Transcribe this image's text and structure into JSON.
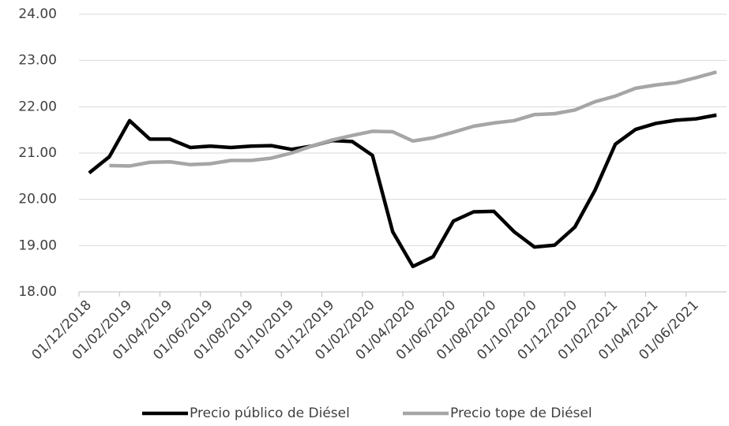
{
  "chart_data": {
    "type": "line",
    "categories": [
      "01/12/2018",
      null,
      "01/02/2019",
      null,
      "01/04/2019",
      null,
      "01/06/2019",
      null,
      "01/08/2019",
      null,
      "01/10/2019",
      null,
      "01/12/2019",
      null,
      "01/02/2020",
      null,
      "01/04/2020",
      null,
      "01/06/2020",
      null,
      "01/08/2020",
      null,
      "01/10/2020",
      null,
      "01/12/2020",
      null,
      "01/02/2021",
      null,
      "01/04/2021",
      null,
      "01/06/2021",
      null
    ],
    "series": [
      {
        "name": "Precio público de Diésel",
        "color": "#000000",
        "values": [
          20.57,
          20.92,
          21.7,
          21.3,
          21.3,
          21.12,
          21.15,
          21.12,
          21.15,
          21.16,
          21.08,
          21.15,
          21.27,
          21.25,
          20.95,
          19.3,
          18.55,
          18.76,
          19.53,
          19.73,
          19.74,
          19.3,
          18.97,
          19.01,
          19.4,
          20.2,
          21.19,
          21.51,
          21.64,
          21.71,
          21.74,
          21.82
        ]
      },
      {
        "name": "Precio tope de Diésel",
        "color": "#a6a6a6",
        "values": [
          null,
          20.73,
          20.72,
          20.8,
          20.81,
          20.75,
          20.77,
          20.84,
          20.84,
          20.89,
          21.0,
          21.15,
          21.28,
          21.38,
          21.47,
          21.46,
          21.26,
          21.33,
          21.45,
          21.58,
          21.65,
          21.7,
          21.83,
          21.85,
          21.93,
          22.11,
          22.23,
          22.4,
          22.47,
          22.52,
          22.63,
          22.75
        ]
      }
    ],
    "ylim": [
      18,
      24
    ],
    "yticks": [
      {
        "value": 18,
        "label": "18.00"
      },
      {
        "value": 19,
        "label": "19.00"
      },
      {
        "value": 20,
        "label": "20.00"
      },
      {
        "value": 21,
        "label": "21.00"
      },
      {
        "value": 22,
        "label": "22.00"
      },
      {
        "value": 23,
        "label": "23.00"
      },
      {
        "value": 24,
        "label": "24.00"
      }
    ],
    "grid": true,
    "legend": "bottom"
  }
}
